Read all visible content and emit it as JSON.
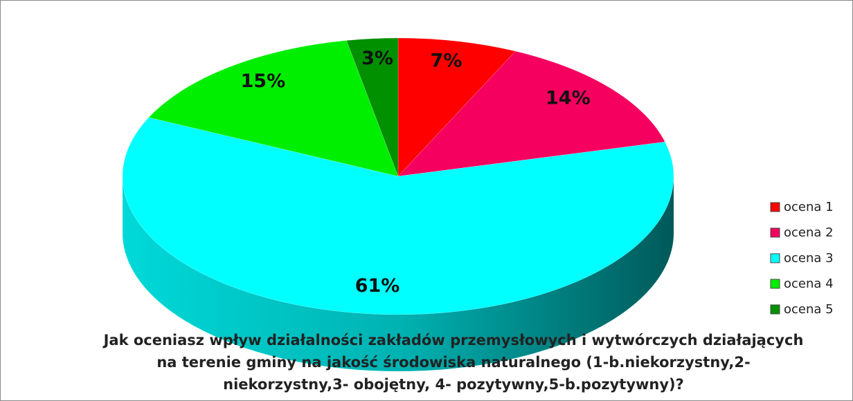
{
  "chart_data": {
    "type": "pie",
    "title": "Jak oceniasz wpływ działalności zakładów przemysłowych i wytwórczych działających na terenie gminy na jakość środowiska naturalnego (1-b.niekorzystny,2-niekorzystny,3- obojętny, 4- pozytywny,5-b.pozytywny)?",
    "categories": [
      "ocena 1",
      "ocena 2",
      "ocena 3",
      "ocena 4",
      "ocena 5"
    ],
    "values": [
      7,
      14,
      61,
      15,
      3
    ],
    "value_labels": [
      "7%",
      "14%",
      "61%",
      "15%",
      "3%"
    ],
    "colors": [
      "#ff0000",
      "#f5005f",
      "#00ffff",
      "#00ee00",
      "#009000"
    ],
    "legend": "right"
  }
}
